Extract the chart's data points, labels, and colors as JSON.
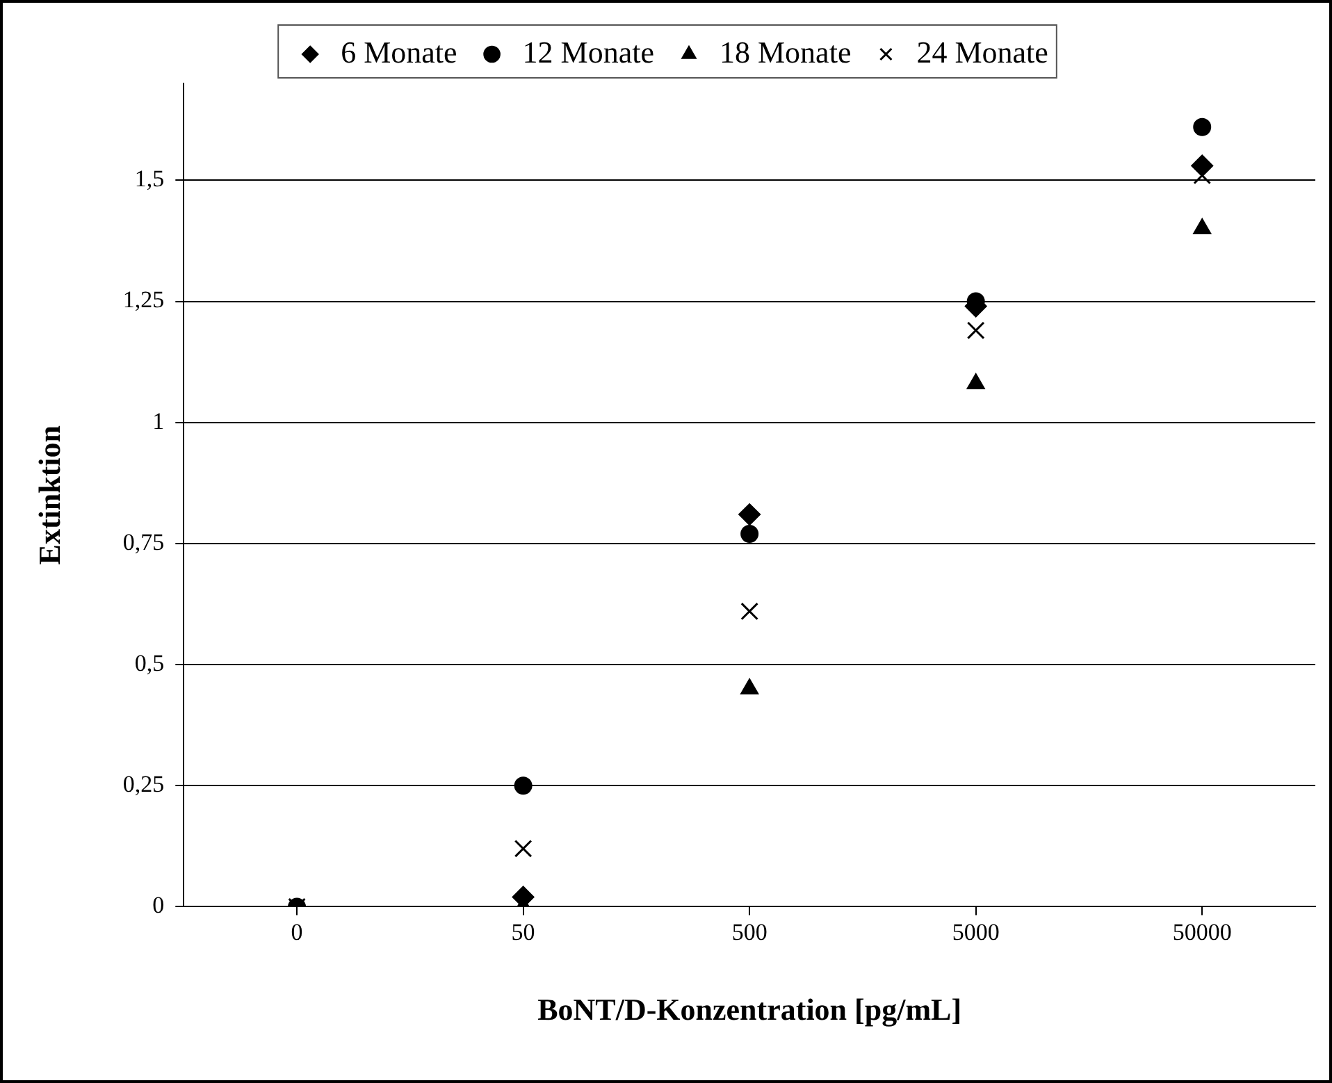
{
  "chart_data": {
    "type": "scatter",
    "xlabel": "BoNT/D-Konzentration [pg/mL]",
    "ylabel": "Extinktion",
    "categories": [
      "0",
      "50",
      "500",
      "5000",
      "50000"
    ],
    "series": [
      {
        "name": "6 Monate",
        "color": "#000000",
        "marker": "diamond",
        "values": [
          null,
          0.02,
          0.81,
          1.24,
          1.53
        ]
      },
      {
        "name": "12 Monate",
        "color": "#000000",
        "marker": "circle",
        "values": [
          0,
          0.25,
          0.77,
          1.25,
          1.61
        ]
      },
      {
        "name": "18 Monate",
        "color": "#000000",
        "marker": "triangle",
        "values": [
          null,
          0,
          0.45,
          1.08,
          1.4
        ]
      },
      {
        "name": "24 Monate",
        "color": "#000000",
        "marker": "cross",
        "values": [
          0,
          0.12,
          0.61,
          1.19,
          1.51
        ]
      }
    ],
    "ylim": [
      0,
      1.7
    ],
    "yticks": [
      0,
      {
        "value": 0.25,
        "label": "0,25"
      },
      {
        "value": 0.5,
        "label": "0,5"
      },
      {
        "value": 0.75,
        "label": "0,75"
      },
      1,
      {
        "value": 1.25,
        "label": "1,25"
      },
      {
        "value": 1.5,
        "label": "1,5"
      }
    ],
    "grid": "y",
    "legend": "top"
  }
}
